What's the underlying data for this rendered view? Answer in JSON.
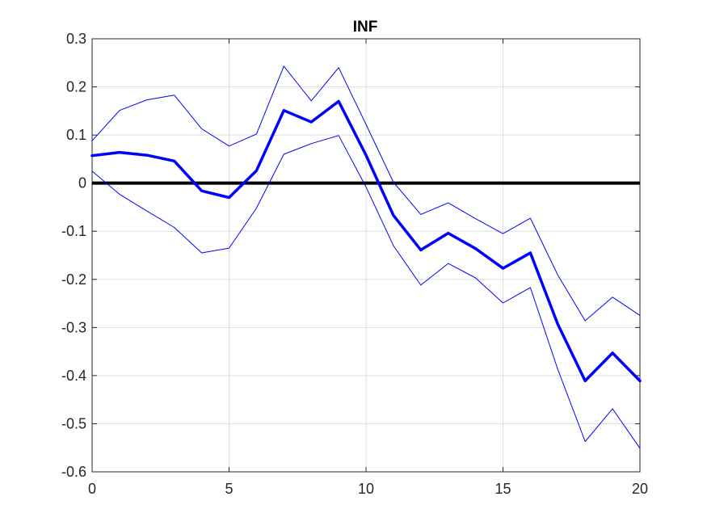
{
  "chart_data": {
    "type": "line",
    "title": "INF",
    "xlabel": "",
    "ylabel": "",
    "xlim": [
      0,
      20
    ],
    "ylim": [
      -0.6,
      0.3
    ],
    "grid": true,
    "legend": "none",
    "x": [
      0,
      1,
      2,
      3,
      4,
      5,
      6,
      7,
      8,
      9,
      10,
      11,
      12,
      13,
      14,
      15,
      16,
      17,
      18,
      19,
      20
    ],
    "xticks": [
      0,
      5,
      10,
      15,
      20
    ],
    "xtick_labels": [
      "0",
      "5",
      "10",
      "15",
      "20"
    ],
    "yticks": [
      -0.6,
      -0.5,
      -0.4,
      -0.3,
      -0.2,
      -0.1,
      0,
      0.1,
      0.2,
      0.3
    ],
    "ytick_labels": [
      "-0.6",
      "-0.5",
      "-0.4",
      "-0.3",
      "-0.2",
      "-0.1",
      "0",
      "0.1",
      "0.2",
      "0.3"
    ],
    "series": [
      {
        "role": "upper-band",
        "color": "#0000ff",
        "values": [
          0.088,
          0.151,
          0.173,
          0.183,
          0.113,
          0.077,
          0.102,
          0.243,
          0.171,
          0.24,
          0.122,
          0.002,
          -0.065,
          -0.041,
          -0.074,
          -0.105,
          -0.073,
          -0.191,
          -0.286,
          -0.237,
          -0.275
        ]
      },
      {
        "role": "median",
        "color": "#0000ff",
        "values": [
          0.057,
          0.064,
          0.058,
          0.046,
          -0.016,
          -0.03,
          0.026,
          0.151,
          0.127,
          0.17,
          0.058,
          -0.067,
          -0.139,
          -0.104,
          -0.136,
          -0.177,
          -0.145,
          -0.293,
          -0.411,
          -0.353,
          -0.411
        ]
      },
      {
        "role": "lower-band",
        "color": "#0000ff",
        "values": [
          0.025,
          -0.023,
          -0.058,
          -0.092,
          -0.145,
          -0.135,
          -0.052,
          0.06,
          0.082,
          0.099,
          -0.008,
          -0.13,
          -0.212,
          -0.167,
          -0.197,
          -0.249,
          -0.217,
          -0.387,
          -0.537,
          -0.469,
          -0.551
        ]
      }
    ],
    "reference_line": {
      "y": 0,
      "color": "#000000"
    }
  }
}
